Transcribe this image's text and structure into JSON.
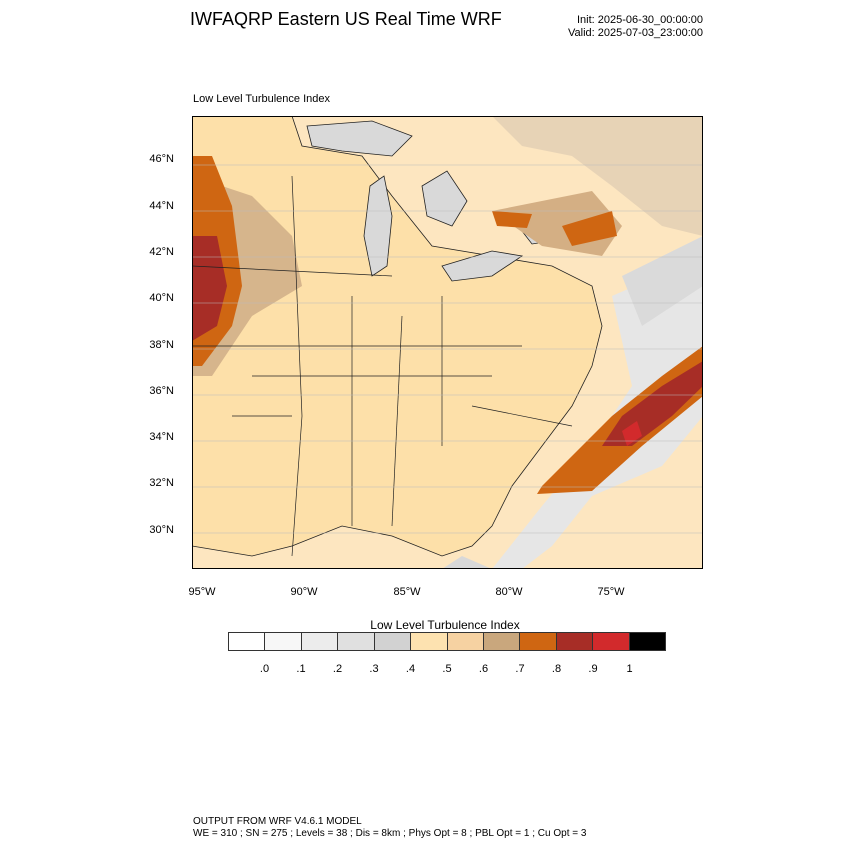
{
  "title": "IWFAQRP Eastern US Real Time WRF",
  "init": "Init: 2025-06-30_00:00:00",
  "valid": "Valid: 2025-07-03_23:00:00",
  "map": {
    "subtitle": "Low Level Turbulence Index",
    "lat_labels": [
      "46°N",
      "44°N",
      "42°N",
      "40°N",
      "38°N",
      "36°N",
      "34°N",
      "32°N",
      "30°N"
    ],
    "lon_labels": [
      "95°W",
      "90°W",
      "85°W",
      "80°W",
      "75°W"
    ],
    "colors": {
      "water": "#ffe2b0",
      "land": "#fde0a9",
      "lake": "#d7d7d7",
      "orange": "#d4680a",
      "redbrown": "#a63228",
      "red": "#d7262a",
      "tan": "#d0aa7c",
      "gray_lt": "#e4e4e4"
    }
  },
  "legend": {
    "title": "Low Level Turbulence Index",
    "levels": [
      ".0",
      ".1",
      ".2",
      ".3",
      ".4",
      ".5",
      ".6",
      ".7",
      ".8",
      ".9",
      "1"
    ],
    "colors": [
      "#ffffff",
      "#f7f7f7",
      "#ececec",
      "#e0e0e0",
      "#d2d2d2",
      "#fde2b0",
      "#f6d2a2",
      "#c9a77d",
      "#cf6612",
      "#a72d26",
      "#d22a2c",
      "#000000"
    ]
  },
  "footer": {
    "line1": "OUTPUT FROM WRF V4.6.1 MODEL",
    "line2": "WE = 310 ; SN = 275 ; Levels = 38 ; Dis = 8km ; Phys Opt = 8 ; PBL Opt = 1 ; Cu Opt = 3"
  }
}
